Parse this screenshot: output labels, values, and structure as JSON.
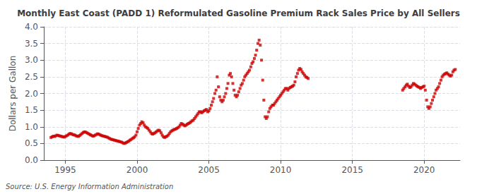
{
  "chart_data": {
    "type": "scatter",
    "title": "Monthly East Coast (PADD 1) Reformulated Gasoline Premium Rack Sales Price by All Sellers",
    "ylabel": "Dollars per Gallon",
    "annotations": [
      "Source: U.S. Energy Information Administration"
    ],
    "color": "#cc0000",
    "marker": "square",
    "grid": true,
    "xlim": [
      1993.5,
      2022.5
    ],
    "xticks": [
      1995,
      2000,
      2005,
      2010,
      2015,
      2020
    ],
    "ylim": [
      0.0,
      4.0
    ],
    "yticks": [
      {
        "value": 0.0,
        "label": "0.0"
      },
      0.5,
      {
        "value": 1.0,
        "label": "1.0"
      },
      1.5,
      {
        "value": 2.0,
        "label": "2.0"
      },
      2.5,
      {
        "value": 3.0,
        "label": "3.0"
      },
      3.5,
      {
        "value": 4.0,
        "label": "4.0"
      }
    ],
    "x": [
      1994.0,
      1994.08,
      1994.17,
      1994.25,
      1994.33,
      1994.42,
      1994.5,
      1994.58,
      1994.67,
      1994.75,
      1994.83,
      1994.92,
      1995.0,
      1995.08,
      1995.17,
      1995.25,
      1995.33,
      1995.42,
      1995.5,
      1995.58,
      1995.67,
      1995.75,
      1995.83,
      1995.92,
      1996.0,
      1996.08,
      1996.17,
      1996.25,
      1996.33,
      1996.42,
      1996.5,
      1996.58,
      1996.67,
      1996.75,
      1996.83,
      1996.92,
      1997.0,
      1997.08,
      1997.17,
      1997.25,
      1997.33,
      1997.42,
      1997.5,
      1997.58,
      1997.67,
      1997.75,
      1997.83,
      1997.92,
      1998.0,
      1998.08,
      1998.17,
      1998.25,
      1998.33,
      1998.42,
      1998.5,
      1998.58,
      1998.67,
      1998.75,
      1998.83,
      1998.92,
      1999.0,
      1999.08,
      1999.17,
      1999.25,
      1999.33,
      1999.42,
      1999.5,
      1999.58,
      1999.67,
      1999.75,
      1999.83,
      1999.92,
      2000.0,
      2000.08,
      2000.17,
      2000.25,
      2000.33,
      2000.42,
      2000.5,
      2000.58,
      2000.67,
      2000.75,
      2000.83,
      2000.92,
      2001.0,
      2001.08,
      2001.17,
      2001.25,
      2001.33,
      2001.42,
      2001.5,
      2001.58,
      2001.67,
      2001.75,
      2001.83,
      2001.92,
      2002.0,
      2002.08,
      2002.17,
      2002.25,
      2002.33,
      2002.42,
      2002.5,
      2002.58,
      2002.67,
      2002.75,
      2002.83,
      2002.92,
      2003.0,
      2003.08,
      2003.17,
      2003.25,
      2003.33,
      2003.42,
      2003.5,
      2003.58,
      2003.67,
      2003.75,
      2003.83,
      2003.92,
      2004.0,
      2004.08,
      2004.17,
      2004.25,
      2004.33,
      2004.42,
      2004.5,
      2004.58,
      2004.67,
      2004.75,
      2004.83,
      2004.92,
      2005.0,
      2005.08,
      2005.17,
      2005.25,
      2005.33,
      2005.42,
      2005.5,
      2005.58,
      2005.67,
      2005.75,
      2005.83,
      2005.92,
      2006.0,
      2006.08,
      2006.17,
      2006.25,
      2006.33,
      2006.42,
      2006.5,
      2006.58,
      2006.67,
      2006.75,
      2006.83,
      2006.92,
      2007.0,
      2007.08,
      2007.17,
      2007.25,
      2007.33,
      2007.42,
      2007.5,
      2007.58,
      2007.67,
      2007.75,
      2007.83,
      2007.92,
      2008.0,
      2008.08,
      2008.17,
      2008.25,
      2008.33,
      2008.42,
      2008.5,
      2008.58,
      2008.67,
      2008.75,
      2008.83,
      2008.92,
      2009.0,
      2009.08,
      2009.17,
      2009.25,
      2009.33,
      2009.42,
      2009.5,
      2009.58,
      2009.67,
      2009.75,
      2009.83,
      2009.92,
      2010.0,
      2010.08,
      2010.17,
      2010.25,
      2010.33,
      2010.42,
      2010.5,
      2010.58,
      2010.67,
      2010.75,
      2010.83,
      2010.92,
      2011.0,
      2011.08,
      2011.17,
      2011.25,
      2011.33,
      2011.42,
      2011.5,
      2011.58,
      2011.67,
      2011.75,
      2011.83,
      2011.92,
      2018.5,
      2018.58,
      2018.67,
      2018.75,
      2018.83,
      2018.92,
      2019.0,
      2019.08,
      2019.17,
      2019.25,
      2019.33,
      2019.42,
      2019.5,
      2019.58,
      2019.67,
      2019.75,
      2019.83,
      2019.92,
      2020.0,
      2020.08,
      2020.17,
      2020.25,
      2020.33,
      2020.42,
      2020.5,
      2020.58,
      2020.67,
      2020.75,
      2020.83,
      2020.92,
      2021.0,
      2021.08,
      2021.17,
      2021.25,
      2021.33,
      2021.42,
      2021.5,
      2021.58,
      2021.67,
      2021.75,
      2021.83,
      2021.92,
      2022.0,
      2022.08,
      2022.17
    ],
    "values": [
      0.68,
      0.7,
      0.72,
      0.71,
      0.73,
      0.75,
      0.74,
      0.73,
      0.72,
      0.71,
      0.7,
      0.69,
      0.71,
      0.73,
      0.75,
      0.78,
      0.8,
      0.79,
      0.77,
      0.76,
      0.75,
      0.73,
      0.72,
      0.71,
      0.74,
      0.77,
      0.8,
      0.83,
      0.85,
      0.84,
      0.82,
      0.8,
      0.78,
      0.76,
      0.74,
      0.72,
      0.73,
      0.75,
      0.77,
      0.79,
      0.78,
      0.76,
      0.74,
      0.73,
      0.72,
      0.71,
      0.7,
      0.69,
      0.67,
      0.65,
      0.63,
      0.62,
      0.61,
      0.6,
      0.59,
      0.58,
      0.57,
      0.56,
      0.55,
      0.54,
      0.52,
      0.5,
      0.51,
      0.53,
      0.55,
      0.57,
      0.6,
      0.62,
      0.65,
      0.67,
      0.7,
      0.75,
      0.85,
      0.95,
      1.05,
      1.1,
      1.15,
      1.12,
      1.05,
      1.0,
      0.98,
      0.95,
      0.9,
      0.85,
      0.8,
      0.78,
      0.8,
      0.82,
      0.85,
      0.88,
      0.9,
      0.88,
      0.82,
      0.75,
      0.7,
      0.68,
      0.7,
      0.72,
      0.75,
      0.8,
      0.85,
      0.88,
      0.9,
      0.92,
      0.93,
      0.95,
      0.97,
      1.0,
      1.05,
      1.1,
      1.08,
      1.05,
      1.03,
      1.05,
      1.08,
      1.1,
      1.12,
      1.15,
      1.18,
      1.2,
      1.25,
      1.3,
      1.35,
      1.4,
      1.45,
      1.45,
      1.42,
      1.45,
      1.48,
      1.5,
      1.52,
      1.45,
      1.48,
      1.55,
      1.65,
      1.75,
      1.85,
      2.0,
      2.1,
      2.5,
      2.2,
      1.9,
      1.8,
      1.75,
      1.8,
      1.9,
      2.0,
      2.15,
      2.3,
      2.55,
      2.6,
      2.5,
      2.3,
      2.1,
      1.95,
      1.9,
      1.95,
      2.05,
      2.15,
      2.25,
      2.3,
      2.4,
      2.5,
      2.55,
      2.6,
      2.65,
      2.7,
      2.8,
      2.9,
      2.95,
      3.05,
      3.15,
      3.3,
      3.5,
      3.6,
      3.45,
      3.0,
      2.4,
      1.8,
      1.3,
      1.25,
      1.3,
      1.45,
      1.55,
      1.6,
      1.65,
      1.65,
      1.7,
      1.75,
      1.8,
      1.85,
      1.9,
      1.95,
      2.0,
      2.05,
      2.1,
      2.15,
      2.15,
      2.1,
      2.15,
      2.18,
      2.2,
      2.22,
      2.25,
      2.35,
      2.5,
      2.6,
      2.7,
      2.75,
      2.72,
      2.65,
      2.6,
      2.55,
      2.5,
      2.48,
      2.45,
      2.1,
      2.15,
      2.2,
      2.25,
      2.28,
      2.22,
      2.18,
      2.2,
      2.25,
      2.3,
      2.28,
      2.25,
      2.22,
      2.2,
      2.18,
      2.15,
      2.18,
      2.2,
      2.22,
      2.1,
      1.8,
      1.6,
      1.55,
      1.6,
      1.7,
      1.8,
      1.9,
      2.0,
      2.1,
      2.15,
      2.2,
      2.3,
      2.4,
      2.5,
      2.55,
      2.58,
      2.6,
      2.62,
      2.58,
      2.55,
      2.52,
      2.55,
      2.65,
      2.7,
      2.72
    ]
  }
}
